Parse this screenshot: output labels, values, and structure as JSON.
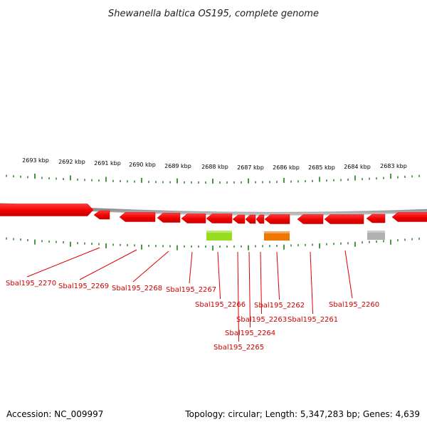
{
  "title": "Shewanella baltica OS195, complete genome",
  "accession": "Accession: NC_009997",
  "topology": "Topology: circular; Length: 5,347,283 bp; Genes: 4,639",
  "colors": {
    "backbone": "#8a8a8a",
    "tick": "#1a7a1a",
    "gene": "#ee0000",
    "gene_label": "#cc0000",
    "feature_green": "#99dd22",
    "feature_orange": "#ee7700",
    "feature_gray": "#b0b0b0"
  },
  "kbp_labels": [
    "2693 kbp",
    "2692 kbp",
    "2691 kbp",
    "2690 kbp",
    "2689 kbp",
    "2688 kbp",
    "2687 kbp",
    "2686 kbp",
    "2685 kbp",
    "2684 kbp",
    "2683 kbp"
  ],
  "genes": [
    {
      "label": "Sbal195_2270"
    },
    {
      "label": "Sbal195_2269"
    },
    {
      "label": "Sbal195_2268"
    },
    {
      "label": "Sbal195_2267"
    },
    {
      "label": "Sbal195_2266"
    },
    {
      "label": "Sbal195_2265"
    },
    {
      "label": "Sbal195_2264"
    },
    {
      "label": "Sbal195_2263"
    },
    {
      "label": "Sbal195_2262"
    },
    {
      "label": "Sbal195_2261"
    },
    {
      "label": "Sbal195_2260"
    }
  ],
  "features": [
    {
      "name": "green-feature",
      "color": "feature_green"
    },
    {
      "name": "orange-feature",
      "color": "feature_orange"
    },
    {
      "name": "gray-feature",
      "color": "feature_gray"
    }
  ]
}
